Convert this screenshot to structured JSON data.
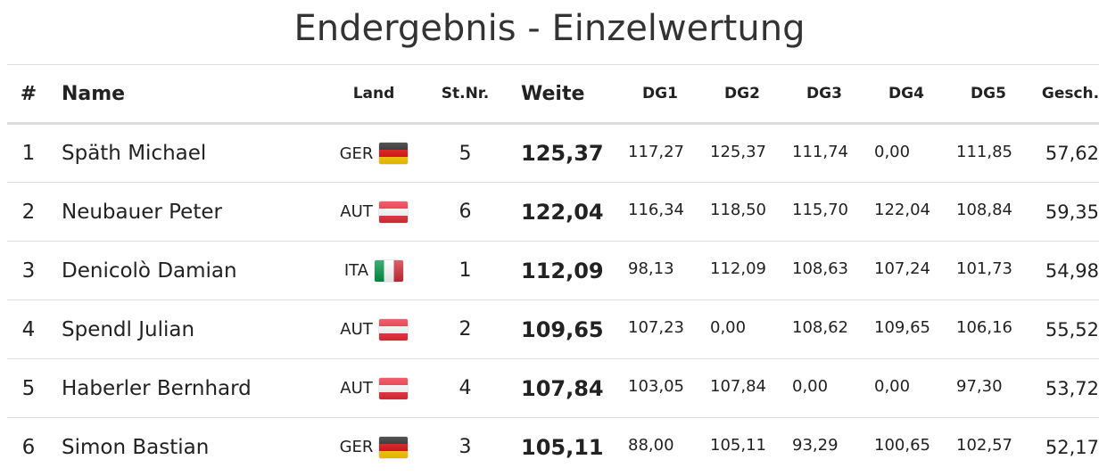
{
  "title": "Endergebnis - Einzelwertung",
  "columns": {
    "rank": "#",
    "name": "Name",
    "land": "Land",
    "stnr": "St.Nr.",
    "weite": "Weite",
    "dg1": "DG1",
    "dg2": "DG2",
    "dg3": "DG3",
    "dg4": "DG4",
    "dg5": "DG5",
    "gesch": "Gesch."
  },
  "flag_colors": {
    "GER": [
      "#1a1a1a",
      "#dd0000",
      "#ffcc00"
    ],
    "AUT": [
      "#ed2939",
      "#ffffff",
      "#ed2939"
    ],
    "ITA": [
      "#009246",
      "#ffffff",
      "#ce2b37"
    ]
  },
  "rows": [
    {
      "rank": "1",
      "name": "Späth Michael",
      "land": "GER",
      "flag": "flag-germany-icon",
      "stnr": "5",
      "weite": "125,37",
      "dg1": "117,27",
      "dg2": "125,37",
      "dg3": "111,74",
      "dg4": "0,00",
      "dg5": "111,85",
      "gesch": "57,62"
    },
    {
      "rank": "2",
      "name": "Neubauer Peter",
      "land": "AUT",
      "flag": "flag-austria-icon",
      "stnr": "6",
      "weite": "122,04",
      "dg1": "116,34",
      "dg2": "118,50",
      "dg3": "115,70",
      "dg4": "122,04",
      "dg5": "108,84",
      "gesch": "59,35"
    },
    {
      "rank": "3",
      "name": "Denicolò Damian",
      "land": "ITA",
      "flag": "flag-italy-icon",
      "stnr": "1",
      "weite": "112,09",
      "dg1": "98,13",
      "dg2": "112,09",
      "dg3": "108,63",
      "dg4": "107,24",
      "dg5": "101,73",
      "gesch": "54,98"
    },
    {
      "rank": "4",
      "name": "Spendl Julian",
      "land": "AUT",
      "flag": "flag-austria-icon",
      "stnr": "2",
      "weite": "109,65",
      "dg1": "107,23",
      "dg2": "0,00",
      "dg3": "108,62",
      "dg4": "109,65",
      "dg5": "106,16",
      "gesch": "55,52"
    },
    {
      "rank": "5",
      "name": "Haberler Bernhard",
      "land": "AUT",
      "flag": "flag-austria-icon",
      "stnr": "4",
      "weite": "107,84",
      "dg1": "103,05",
      "dg2": "107,84",
      "dg3": "0,00",
      "dg4": "0,00",
      "dg5": "97,30",
      "gesch": "53,72"
    },
    {
      "rank": "6",
      "name": "Simon Bastian",
      "land": "GER",
      "flag": "flag-germany-icon",
      "stnr": "3",
      "weite": "105,11",
      "dg1": "88,00",
      "dg2": "105,11",
      "dg3": "93,29",
      "dg4": "100,65",
      "dg5": "102,57",
      "gesch": "52,17"
    }
  ]
}
